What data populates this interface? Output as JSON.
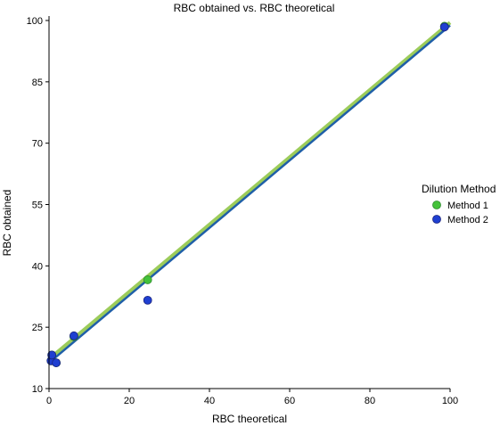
{
  "chart_data": {
    "type": "scatter",
    "title": "RBC obtained vs. RBC theoretical",
    "xlabel": "RBC theoretical",
    "ylabel": "RBC obtained",
    "xlim": [
      0,
      100
    ],
    "ylim": [
      10,
      100
    ],
    "x_ticks": [
      0,
      20,
      40,
      60,
      80,
      100
    ],
    "y_ticks": [
      10,
      25,
      40,
      55,
      70,
      85,
      100
    ],
    "grid": false,
    "legend": {
      "title": "Dilution Method",
      "placement": "right"
    },
    "series": [
      {
        "name": "Method 1",
        "color": "#44c23a",
        "line_color": "#9ccc5a",
        "points": [
          {
            "x": 0.5,
            "y": 16.8
          },
          {
            "x": 0.7,
            "y": 18.2
          },
          {
            "x": 1.8,
            "y": 16.3
          },
          {
            "x": 6.2,
            "y": 22.7
          },
          {
            "x": 24.6,
            "y": 36.6
          },
          {
            "x": 98.6,
            "y": 98.6
          }
        ],
        "fit": [
          [
            0,
            17.2
          ],
          [
            100,
            99.5
          ]
        ]
      },
      {
        "name": "Method 2",
        "color": "#1f3fd1",
        "line_color": "#1f5fa8",
        "points": [
          {
            "x": 0.5,
            "y": 16.8
          },
          {
            "x": 0.7,
            "y": 18.2
          },
          {
            "x": 1.8,
            "y": 16.3
          },
          {
            "x": 6.2,
            "y": 22.9
          },
          {
            "x": 24.6,
            "y": 31.6
          },
          {
            "x": 98.6,
            "y": 98.4
          }
        ],
        "fit": [
          [
            0,
            16.3
          ],
          [
            100,
            98.8
          ]
        ]
      }
    ]
  }
}
